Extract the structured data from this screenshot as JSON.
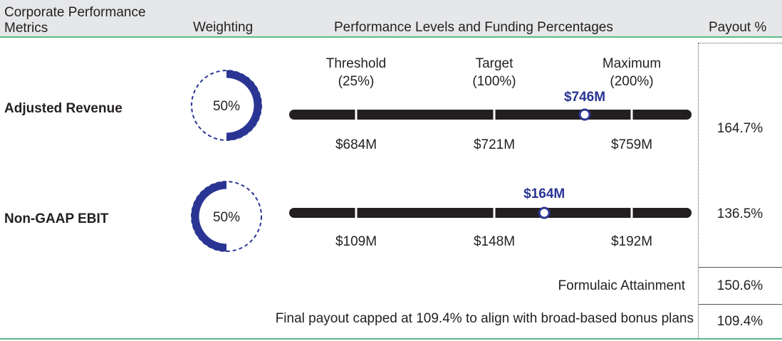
{
  "header": {
    "col1": "Corporate Performance Metrics",
    "col2": "Weighting",
    "col3": "Performance Levels and Funding Percentages",
    "col4": "Payout %"
  },
  "chart_data": {
    "type": "table",
    "levels": [
      {
        "name": "Threshold",
        "funding": "(25%)"
      },
      {
        "name": "Target",
        "funding": "(100%)"
      },
      {
        "name": "Maximum",
        "funding": "(200%)"
      }
    ],
    "metrics": [
      {
        "name": "Adjusted Revenue",
        "weight": 50,
        "weight_label": "50%",
        "weight_side": "right",
        "thresholds": [
          684,
          721,
          759
        ],
        "threshold_labels": [
          "$684M",
          "$721M",
          "$759M"
        ],
        "actual": 746,
        "actual_label": "$746M",
        "payout": "164.7%"
      },
      {
        "name": "Non-GAAP EBIT",
        "weight": 50,
        "weight_label": "50%",
        "weight_side": "left",
        "thresholds": [
          109,
          148,
          192
        ],
        "threshold_labels": [
          "$109M",
          "$148M",
          "$192M"
        ],
        "actual": 164,
        "actual_label": "$164M",
        "payout": "136.5%"
      }
    ],
    "colors": {
      "accent": "#2a3593",
      "bar": "#231f20",
      "header_bg": "#e6e7e8",
      "rule": "#5cb88a"
    }
  },
  "summary": {
    "formulaic_label": "Formulaic Attainment",
    "formulaic_value": "150.6%",
    "final_label": "Final payout capped at 109.4% to align with broad-based bonus plans",
    "final_value": "109.4%"
  }
}
